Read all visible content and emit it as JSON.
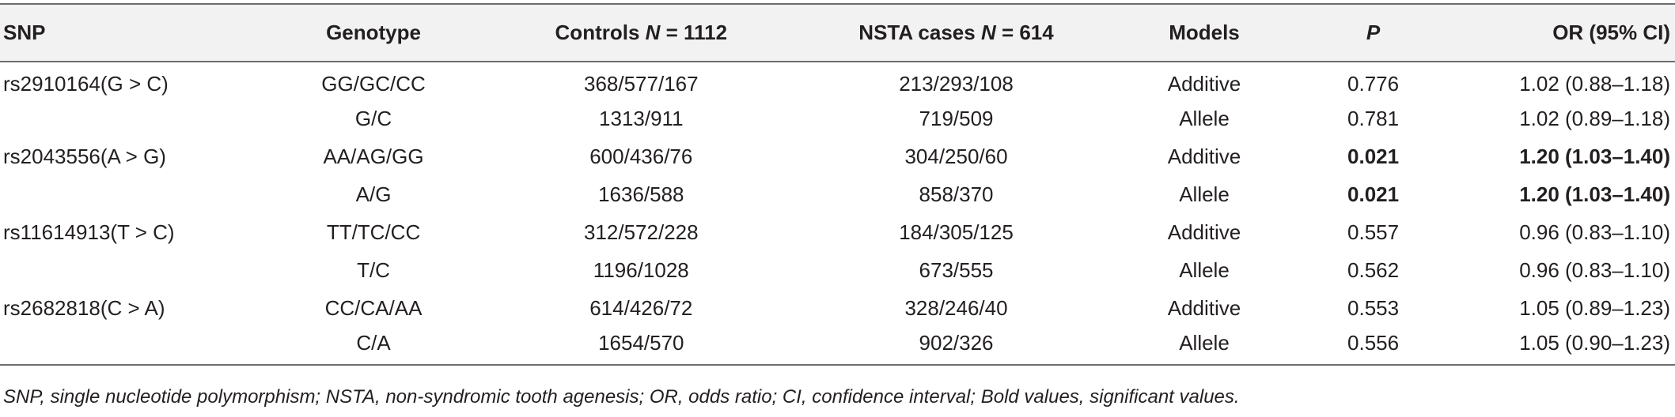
{
  "headers": {
    "snp": "SNP",
    "genotype": "Genotype",
    "controls_prefix": "Controls ",
    "controls_n": "N",
    "controls_suffix": " = 1112",
    "nsta_prefix": "NSTA cases ",
    "nsta_n": "N",
    "nsta_suffix": " = 614",
    "models": "Models",
    "p": "P",
    "or": "OR (95% CI)"
  },
  "rows": [
    {
      "snp": "rs2910164(G > C)",
      "genotype": "GG/GC/CC",
      "controls": "368/577/167",
      "cases": "213/293/108",
      "model": "Additive",
      "p": "0.776",
      "or": "1.02 (0.88–1.18)"
    },
    {
      "snp": "",
      "genotype": "G/C",
      "controls": "1313/911",
      "cases": "719/509",
      "model": "Allele",
      "p": "0.781",
      "or": "1.02 (0.89–1.18)"
    },
    {
      "snp": "rs2043556(A > G)",
      "genotype": "AA/AG/GG",
      "controls": "600/436/76",
      "cases": "304/250/60",
      "model": "Additive",
      "p": "0.021",
      "or": "1.20 (1.03–1.40)"
    },
    {
      "snp": "",
      "genotype": "A/G",
      "controls": "1636/588",
      "cases": "858/370",
      "model": "Allele",
      "p": "0.021",
      "or": "1.20 (1.03–1.40)"
    },
    {
      "snp": "rs11614913(T > C)",
      "genotype": "TT/TC/CC",
      "controls": "312/572/228",
      "cases": "184/305/125",
      "model": "Additive",
      "p": "0.557",
      "or": "0.96 (0.83–1.10)"
    },
    {
      "snp": "",
      "genotype": "T/C",
      "controls": "1196/1028",
      "cases": "673/555",
      "model": "Allele",
      "p": "0.562",
      "or": "0.96 (0.83–1.10)"
    },
    {
      "snp": "rs2682818(C > A)",
      "genotype": "CC/CA/AA",
      "controls": "614/426/72",
      "cases": "328/246/40",
      "model": "Additive",
      "p": "0.553",
      "or": "1.05 (0.89–1.23)"
    },
    {
      "snp": "",
      "genotype": "C/A",
      "controls": "1654/570",
      "cases": "902/326",
      "model": "Allele",
      "p": "0.556",
      "or": "1.05 (0.90–1.23)"
    }
  ],
  "footnote": "SNP, single nucleotide polymorphism; NSTA, non-syndromic tooth agenesis; OR, odds ratio; CI, confidence interval; Bold values, significant values."
}
